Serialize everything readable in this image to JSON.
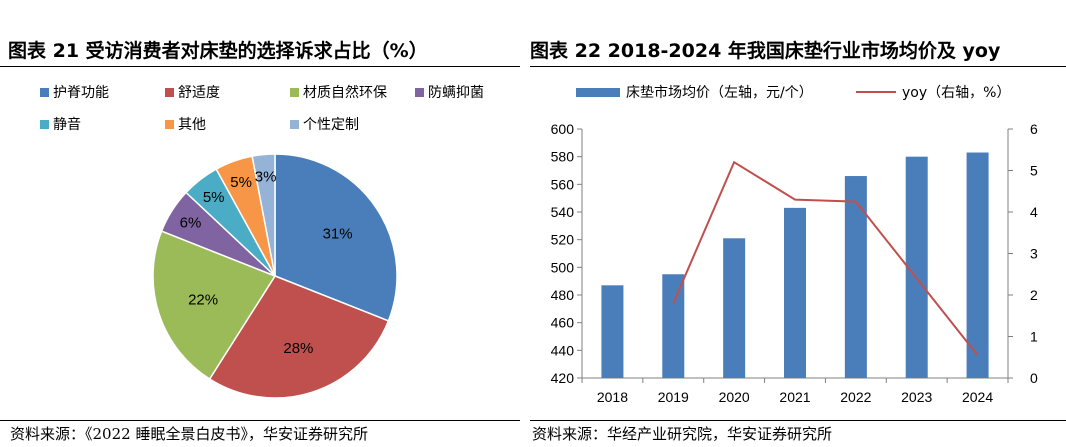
{
  "left": {
    "title": "图表 21 受访消费者对床垫的选择诉求占比（%）",
    "source": "资料来源：《2022 睡眠全景白皮书》，华安证券研究所"
  },
  "right": {
    "title": "图表 22 2018-2024 年我国床垫行业市场均价及 yoy",
    "source": "资料来源：华经产业研究院，华安证券研究所"
  },
  "chart_data": [
    {
      "type": "pie",
      "title": "图表 21 受访消费者对床垫的选择诉求占比（%）",
      "legend_position": "top",
      "slices": [
        {
          "name": "护脊功能",
          "value": 31,
          "label": "31%",
          "color": "#4a7ebb"
        },
        {
          "name": "舒适度",
          "value": 28,
          "label": "28%",
          "color": "#c0504d"
        },
        {
          "name": "材质自然环保",
          "value": 22,
          "label": "22%",
          "color": "#9bbb59"
        },
        {
          "name": "防螨抑菌",
          "value": 6,
          "label": "6%",
          "color": "#8064a2"
        },
        {
          "name": "静音",
          "value": 5,
          "label": "5%",
          "color": "#4bacc6"
        },
        {
          "name": "其他",
          "value": 5,
          "label": "5%",
          "color": "#f79646"
        },
        {
          "name": "个性定制",
          "value": 3,
          "label": "3%",
          "color": "#95b3d7"
        }
      ]
    },
    {
      "type": "bar",
      "title": "图表 22 2018-2024 年我国床垫行业市场均价及 yoy",
      "legend_position": "top",
      "categories": [
        "2018",
        "2019",
        "2020",
        "2021",
        "2022",
        "2023",
        "2024"
      ],
      "series": [
        {
          "name": "床垫市场均价（左轴，元/个）",
          "type": "bar",
          "axis": "left",
          "color": "#4a7ebb",
          "values": [
            487,
            495,
            521,
            543,
            566,
            580,
            583
          ]
        },
        {
          "name": "yoy（右轴，%）",
          "type": "line",
          "axis": "right",
          "color": "#c0504d",
          "values": [
            null,
            1.8,
            5.2,
            4.3,
            4.25,
            2.4,
            0.55
          ]
        }
      ],
      "y_left": {
        "min": 420,
        "max": 600,
        "ticks": [
          "420",
          "440",
          "460",
          "480",
          "500",
          "520",
          "540",
          "560",
          "580",
          "600"
        ]
      },
      "y_right": {
        "min": 0,
        "max": 6,
        "ticks": [
          "0",
          "1",
          "2",
          "3",
          "4",
          "5",
          "6"
        ]
      },
      "grid": false
    }
  ]
}
